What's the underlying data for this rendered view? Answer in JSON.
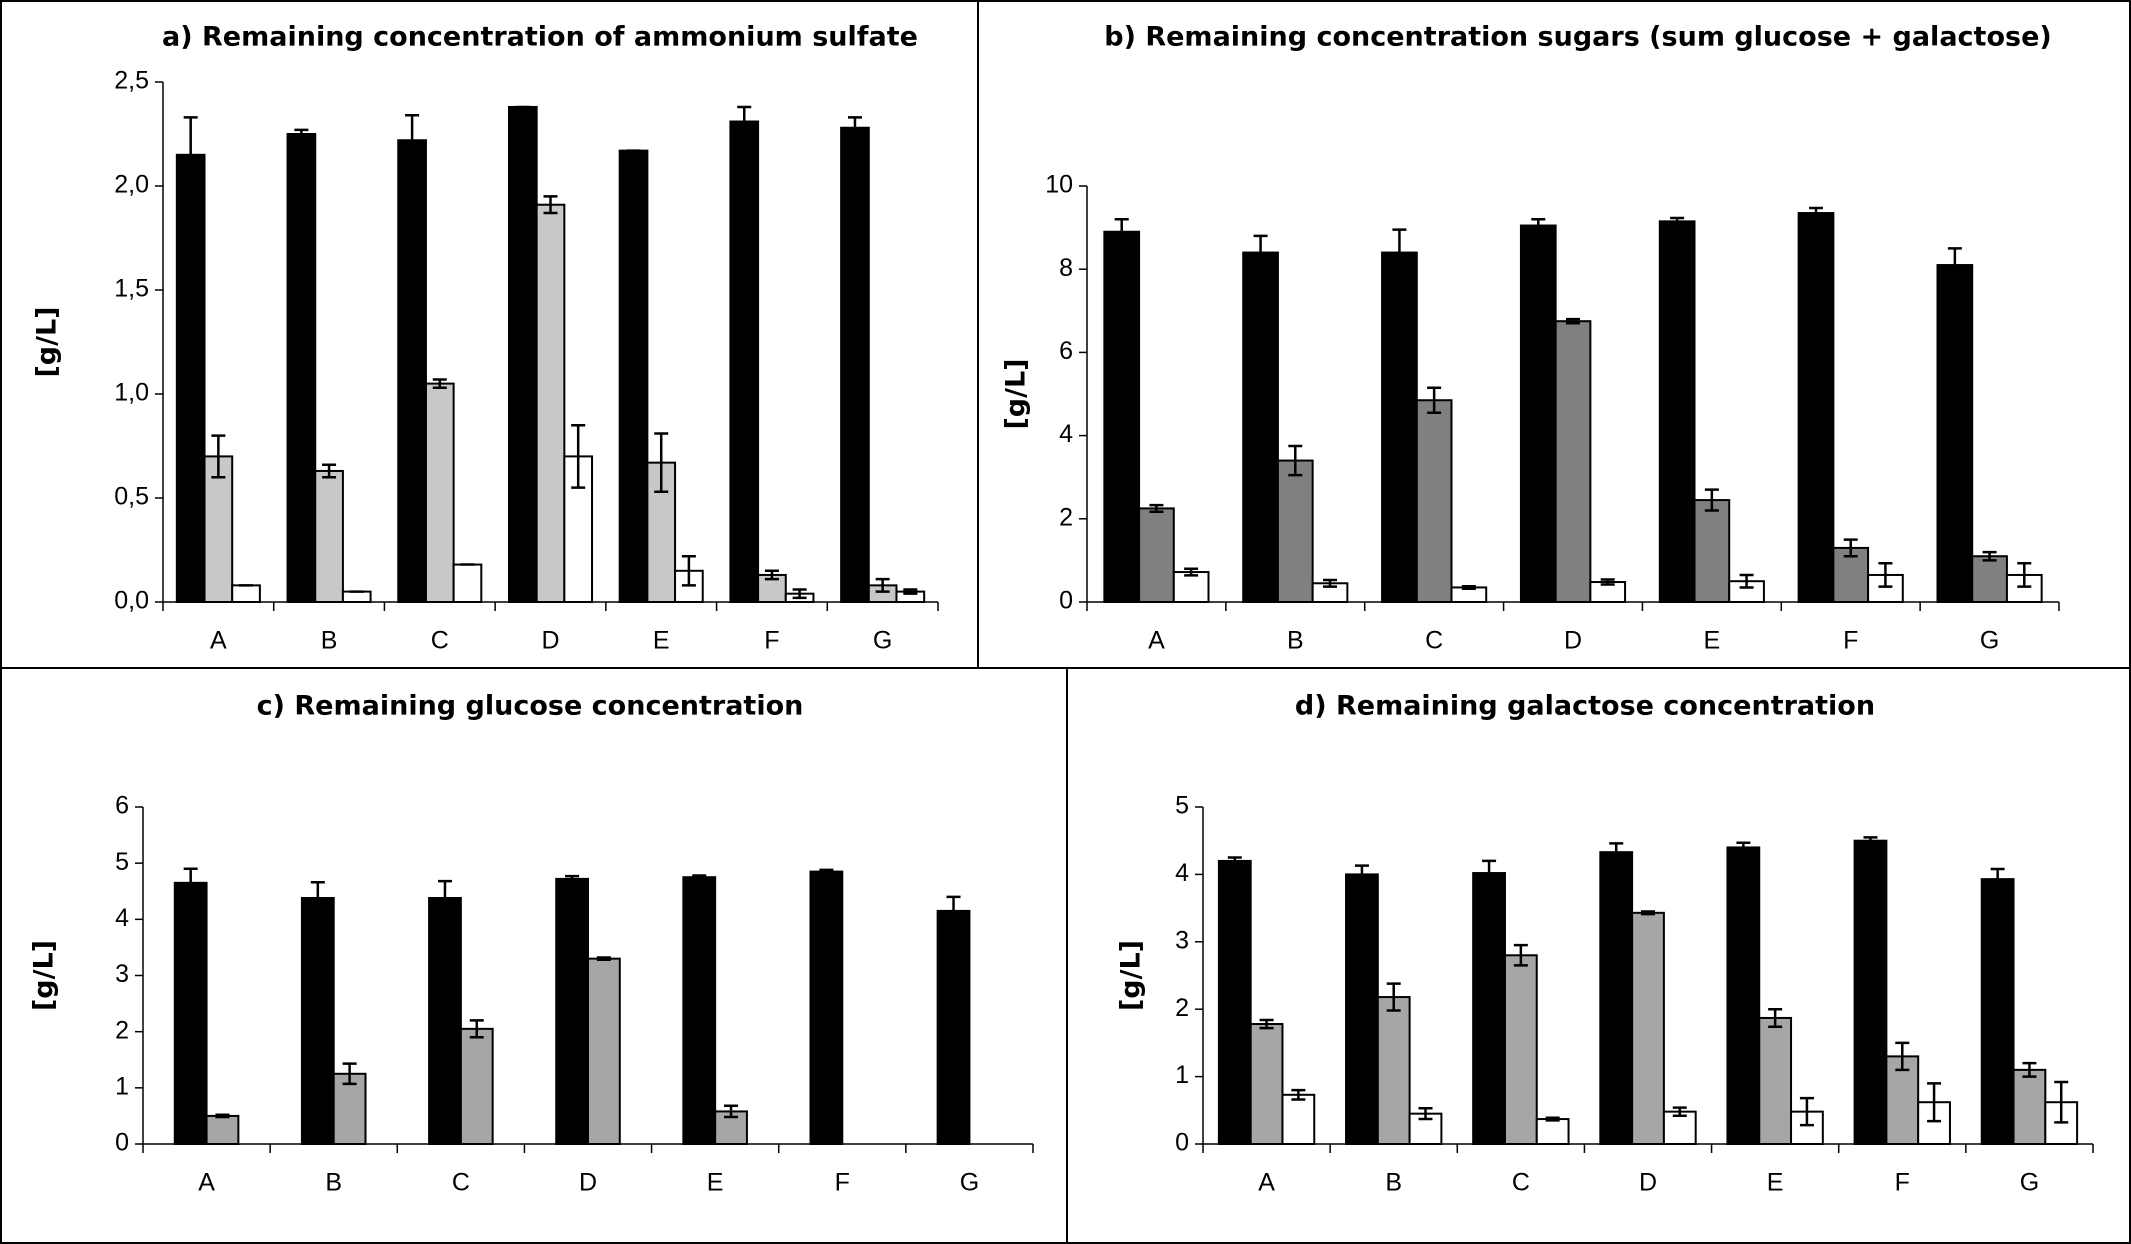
{
  "chart_data": [
    {
      "type": "bar",
      "title": "a) Remaining concentration of ammonium sulfate",
      "y_label": "[g/L]",
      "categories": [
        "A",
        "B",
        "C",
        "D",
        "E",
        "F",
        "G"
      ],
      "ylim": [
        0,
        2.5
      ],
      "yticks": [
        {
          "value": 0,
          "label": "0,0"
        },
        {
          "value": 0.5,
          "label": "0,5"
        },
        {
          "value": 1,
          "label": "1,0"
        },
        {
          "value": 1.5,
          "label": "1,5"
        },
        {
          "value": 2,
          "label": "2,0"
        },
        {
          "value": 2.5,
          "label": "2,5"
        }
      ],
      "series": [
        {
          "color": "#000000",
          "values": [
            2.15,
            2.25,
            2.22,
            2.38,
            2.17,
            2.31,
            2.28
          ],
          "errors": [
            0.18,
            0.02,
            0.12,
            0,
            0,
            0.07,
            0.05
          ]
        },
        {
          "color": "#c8c8c8",
          "values": [
            0.7,
            0.63,
            1.05,
            1.91,
            0.67,
            0.13,
            0.08
          ],
          "errors": [
            0.1,
            0.03,
            0.02,
            0.04,
            0.14,
            0.02,
            0.03
          ]
        },
        {
          "color": "#ffffff",
          "values": [
            0.08,
            0.05,
            0.18,
            0.7,
            0.15,
            0.04,
            0.05
          ],
          "errors": [
            0,
            0,
            0,
            0.15,
            0.07,
            0.02,
            0.01
          ]
        }
      ]
    },
    {
      "type": "bar",
      "title": "b) Remaining concentration sugars (sum glucose + galactose)",
      "y_label": "[g/L]",
      "categories": [
        "A",
        "B",
        "C",
        "D",
        "E",
        "F",
        "G"
      ],
      "ylim": [
        0,
        10
      ],
      "yticks": [
        0,
        2,
        4,
        6,
        8,
        10
      ],
      "series": [
        {
          "color": "#000000",
          "values": [
            8.9,
            8.4,
            8.4,
            9.05,
            9.15,
            9.35,
            8.1
          ],
          "errors": [
            0.3,
            0.4,
            0.55,
            0.15,
            0.08,
            0.12,
            0.4
          ]
        },
        {
          "color": "#808080",
          "values": [
            2.25,
            3.4,
            4.85,
            6.75,
            2.45,
            1.3,
            1.1
          ],
          "errors": [
            0.08,
            0.35,
            0.3,
            0.05,
            0.25,
            0.2,
            0.1
          ]
        },
        {
          "color": "#ffffff",
          "values": [
            0.72,
            0.45,
            0.35,
            0.48,
            0.5,
            0.65,
            0.65
          ],
          "errors": [
            0.08,
            0.08,
            0.03,
            0.06,
            0.15,
            0.28,
            0.28
          ]
        }
      ]
    },
    {
      "type": "bar",
      "title": "c) Remaining glucose concentration",
      "y_label": "[g/L]",
      "categories": [
        "A",
        "B",
        "C",
        "D",
        "E",
        "F",
        "G"
      ],
      "ylim": [
        0,
        6
      ],
      "yticks": [
        0,
        1,
        2,
        3,
        4,
        5,
        6
      ],
      "series": [
        {
          "color": "#000000",
          "values": [
            4.65,
            4.38,
            4.38,
            4.72,
            4.75,
            4.85,
            4.15
          ],
          "errors": [
            0.25,
            0.28,
            0.3,
            0.05,
            0.03,
            0.03,
            0.25
          ]
        },
        {
          "color": "#a6a6a6",
          "values": [
            0.5,
            1.25,
            2.05,
            3.3,
            0.58,
            null,
            null
          ],
          "errors": [
            0.02,
            0.18,
            0.15,
            0.02,
            0.1,
            null,
            null
          ]
        }
      ]
    },
    {
      "type": "bar",
      "title": "d) Remaining galactose concentration",
      "y_label": "[g/L]",
      "categories": [
        "A",
        "B",
        "C",
        "D",
        "E",
        "F",
        "G"
      ],
      "ylim": [
        0,
        5
      ],
      "yticks": [
        0,
        1,
        2,
        3,
        4,
        5
      ],
      "series": [
        {
          "color": "#000000",
          "values": [
            4.2,
            4.0,
            4.02,
            4.33,
            4.4,
            4.5,
            3.93
          ],
          "errors": [
            0.05,
            0.13,
            0.18,
            0.13,
            0.07,
            0.05,
            0.15
          ]
        },
        {
          "color": "#a6a6a6",
          "values": [
            1.78,
            2.18,
            2.8,
            3.43,
            1.87,
            1.3,
            1.1
          ],
          "errors": [
            0.06,
            0.2,
            0.15,
            0.02,
            0.13,
            0.2,
            0.1
          ]
        },
        {
          "color": "#ffffff",
          "values": [
            0.73,
            0.45,
            0.37,
            0.48,
            0.48,
            0.62,
            0.62
          ],
          "errors": [
            0.07,
            0.08,
            0.02,
            0.06,
            0.2,
            0.28,
            0.3
          ]
        }
      ]
    }
  ]
}
